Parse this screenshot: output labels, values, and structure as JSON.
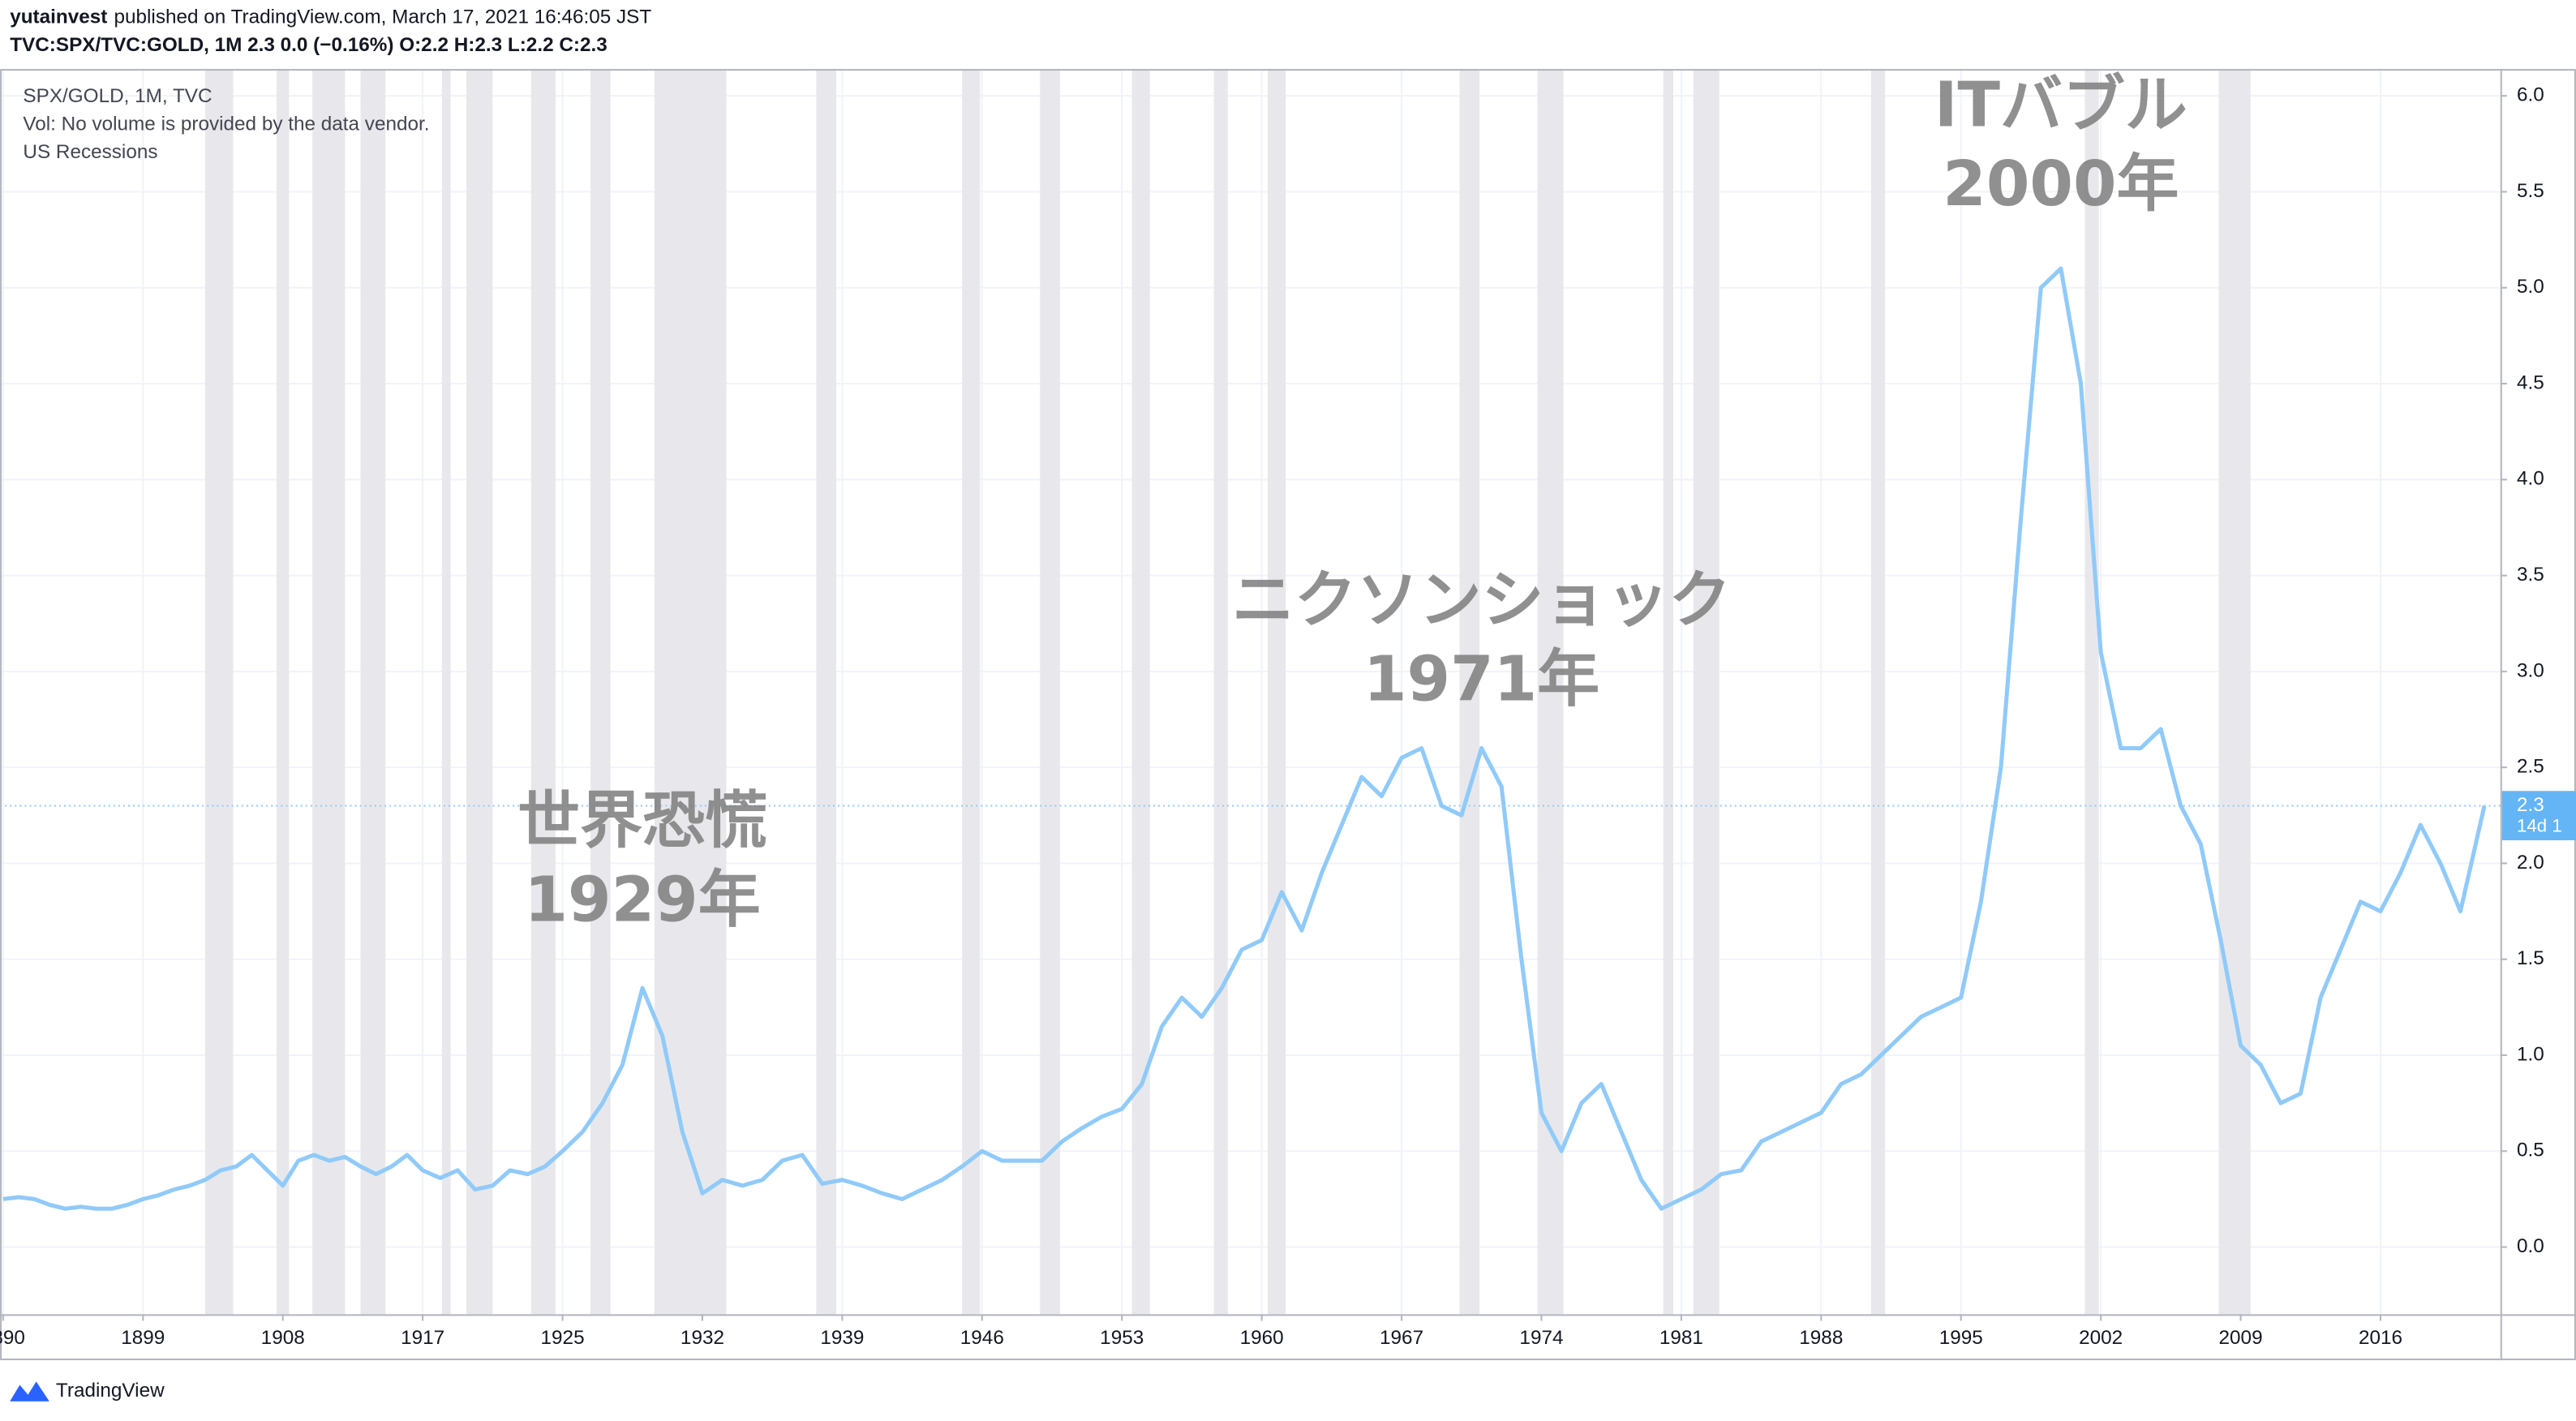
{
  "header": {
    "author": "yutainvest",
    "published": "published on TradingView.com, March 17, 2021 16:46:05 JST",
    "symbol_line": "TVC:SPX/TVC:GOLD, 1M  2.3 0.0 (−0.16%) O:2.2 H:2.3 L:2.2 C:2.3"
  },
  "legend": {
    "volume": "Vol: No volume is provided by the data vendor.",
    "recessions": "US Recessions"
  },
  "footer": {
    "brand": "TradingView"
  },
  "chart_data": {
    "type": "line",
    "x": [
      1890,
      1891,
      1892,
      1893,
      1894,
      1895,
      1896,
      1897,
      1898,
      1899,
      1900,
      1901,
      1902,
      1903,
      1904,
      1905,
      1906,
      1907,
      1908,
      1909,
      1910,
      1911,
      1912,
      1913,
      1914,
      1915,
      1916,
      1917,
      1918,
      1919,
      1920,
      1921,
      1922,
      1923,
      1924,
      1925,
      1926,
      1927,
      1928,
      1929,
      1930,
      1931,
      1932,
      1933,
      1934,
      1935,
      1936,
      1937,
      1938,
      1939,
      1940,
      1941,
      1942,
      1943,
      1944,
      1945,
      1946,
      1947,
      1948,
      1949,
      1950,
      1951,
      1952,
      1953,
      1954,
      1955,
      1956,
      1957,
      1958,
      1959,
      1960,
      1961,
      1962,
      1963,
      1964,
      1965,
      1966,
      1967,
      1968,
      1969,
      1970,
      1971,
      1972,
      1973,
      1974,
      1975,
      1976,
      1977,
      1978,
      1979,
      1980,
      1981,
      1982,
      1983,
      1984,
      1985,
      1986,
      1987,
      1988,
      1989,
      1990,
      1991,
      1992,
      1993,
      1994,
      1995,
      1996,
      1997,
      1998,
      1999,
      2000,
      2001,
      2002,
      2003,
      2004,
      2005,
      2006,
      2007,
      2008,
      2009,
      2010,
      2011,
      2012,
      2013,
      2014,
      2015,
      2016,
      2017,
      2018,
      2019,
      2020,
      2021.2
    ],
    "series": [
      {
        "name": "SPX/GOLD, 1M, TVC",
        "color": "#90caf9",
        "values": [
          0.25,
          0.26,
          0.25,
          0.22,
          0.2,
          0.21,
          0.2,
          0.2,
          0.22,
          0.25,
          0.27,
          0.3,
          0.32,
          0.35,
          0.4,
          0.42,
          0.48,
          0.4,
          0.32,
          0.45,
          0.48,
          0.45,
          0.47,
          0.42,
          0.38,
          0.42,
          0.48,
          0.4,
          0.36,
          0.4,
          0.3,
          0.32,
          0.4,
          0.38,
          0.42,
          0.5,
          0.6,
          0.75,
          0.95,
          1.35,
          1.1,
          0.6,
          0.28,
          0.35,
          0.32,
          0.35,
          0.45,
          0.48,
          0.33,
          0.35,
          0.32,
          0.28,
          0.25,
          0.3,
          0.35,
          0.42,
          0.5,
          0.45,
          0.45,
          0.45,
          0.55,
          0.62,
          0.68,
          0.72,
          0.85,
          1.15,
          1.3,
          1.2,
          1.35,
          1.55,
          1.6,
          1.85,
          1.65,
          1.95,
          2.2,
          2.45,
          2.35,
          2.55,
          2.6,
          2.3,
          2.25,
          2.6,
          2.4,
          1.5,
          0.7,
          0.5,
          0.75,
          0.85,
          0.6,
          0.35,
          0.2,
          0.25,
          0.3,
          0.38,
          0.4,
          0.55,
          0.6,
          0.65,
          0.7,
          0.85,
          0.9,
          1.0,
          1.1,
          1.2,
          1.25,
          1.3,
          1.8,
          2.5,
          3.8,
          5.0,
          5.1,
          4.5,
          3.1,
          2.6,
          2.6,
          2.7,
          2.3,
          2.1,
          1.6,
          1.05,
          0.95,
          0.75,
          0.8,
          1.3,
          1.55,
          1.8,
          1.75,
          1.95,
          2.2,
          2.0,
          1.75,
          2.3
        ]
      }
    ],
    "recessions": [
      [
        1903.0,
        1904.8
      ],
      [
        1907.6,
        1908.4
      ],
      [
        1909.9,
        1912.0
      ],
      [
        1913.0,
        1914.6
      ],
      [
        1918.1,
        1918.6
      ],
      [
        1919.5,
        1921.0
      ],
      [
        1923.2,
        1924.6
      ],
      [
        1926.4,
        1927.4
      ],
      [
        1929.6,
        1933.2
      ],
      [
        1937.7,
        1938.7
      ],
      [
        1945.0,
        1945.9
      ],
      [
        1948.9,
        1949.9
      ],
      [
        1953.5,
        1954.4
      ],
      [
        1957.6,
        1958.3
      ],
      [
        1960.3,
        1961.2
      ],
      [
        1969.9,
        1970.9
      ],
      [
        1973.8,
        1975.1
      ],
      [
        1980.1,
        1980.6
      ],
      [
        1981.6,
        1982.9
      ],
      [
        1990.5,
        1991.2
      ],
      [
        2001.2,
        2001.9
      ],
      [
        2007.9,
        2009.5
      ]
    ],
    "recession_color": "#e8e8ec",
    "last_value": 2.3,
    "countdown": "14d 1",
    "annotations": [
      {
        "x": 1929,
        "lines": [
          "世界恐慌",
          "1929年"
        ],
        "y": 2.2
      },
      {
        "x": 1971,
        "lines": [
          "ニクソンショック",
          "1971年"
        ],
        "y": 3.35
      },
      {
        "x": 2000,
        "lines": [
          "ITバブル",
          "2000年"
        ],
        "y": 5.93
      }
    ],
    "xlim": [
      1889.8,
      2022
    ],
    "xticks": [
      1890,
      1899,
      1908,
      1917,
      1925,
      1932,
      1939,
      1946,
      1953,
      1960,
      1967,
      1974,
      1981,
      1988,
      1995,
      2002,
      2009,
      2016
    ],
    "ylim": [
      -0.35,
      6.14
    ],
    "yticks": [
      {
        "value": 0,
        "label": "0.0"
      },
      0.5,
      {
        "value": 1,
        "label": "1.0"
      },
      1.5,
      {
        "value": 2,
        "label": "2.0"
      },
      2.5,
      {
        "value": 3,
        "label": "3.0"
      },
      3.5,
      {
        "value": 4,
        "label": "4.0"
      },
      4.5,
      {
        "value": 5,
        "label": "5.0"
      },
      5.5,
      {
        "value": 6,
        "label": "6.0"
      }
    ],
    "grid": true
  }
}
